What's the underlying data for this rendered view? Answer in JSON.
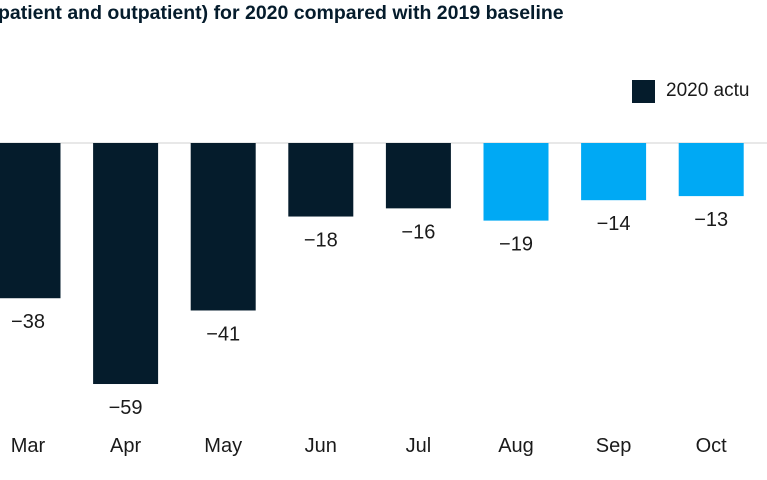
{
  "title": "patient and outpatient) for 2020 compared with 2019 baseline",
  "legend": {
    "label": "2020 actu",
    "color": "#051c2c"
  },
  "colors": {
    "actual": "#051c2c",
    "estimate": "#00a9f4",
    "zero_line": "#d0d0d0",
    "text": "#1a1a1a"
  },
  "chart_data": {
    "type": "bar",
    "title": "",
    "xlabel": "",
    "ylabel": "",
    "categories": [
      "Mar",
      "Apr",
      "May",
      "Jun",
      "Jul",
      "Aug",
      "Sep",
      "Oct"
    ],
    "series": [
      {
        "name": "2020 actu",
        "values": [
          -38,
          -59,
          -41,
          -18,
          -16,
          -19,
          -14,
          -13
        ]
      }
    ],
    "bar_kinds": [
      "actual",
      "actual",
      "actual",
      "actual",
      "actual",
      "estimate",
      "estimate",
      "estimate"
    ],
    "data_labels": [
      "−38",
      "−59",
      "−41",
      "−18",
      "−16",
      "−19",
      "−14",
      "−13"
    ],
    "ylim": [
      -59,
      0
    ],
    "grid": false,
    "legend_position": "top-right"
  }
}
